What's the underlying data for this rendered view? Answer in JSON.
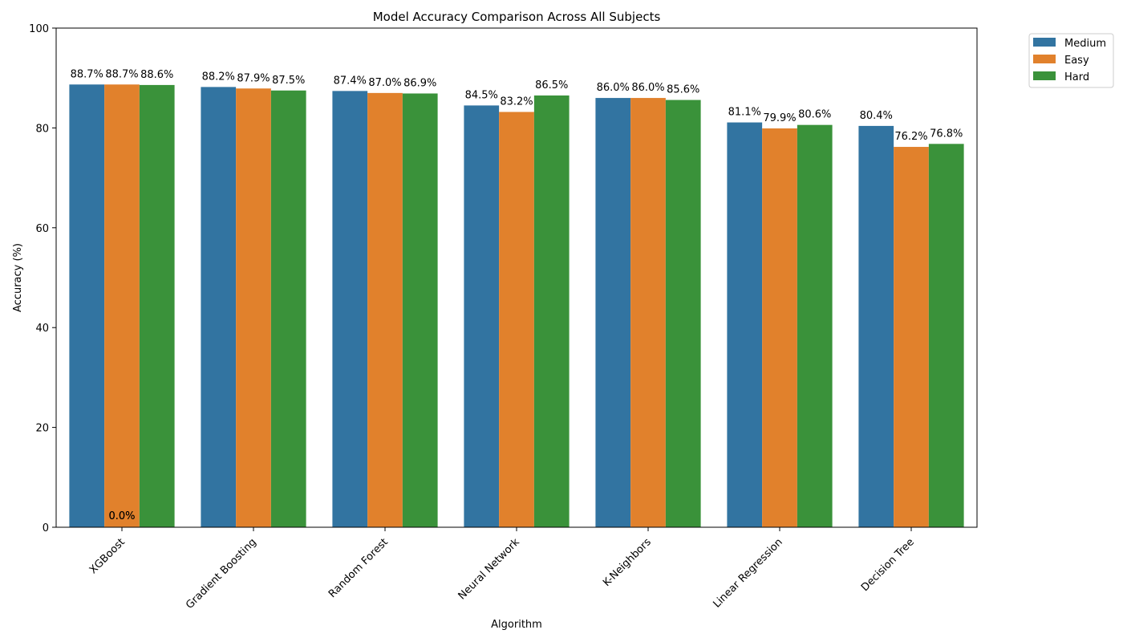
{
  "chart_data": {
    "type": "bar",
    "title": "Model Accuracy Comparison Across All Subjects",
    "xlabel": "Algorithm",
    "ylabel": "Accuracy (%)",
    "ylim": [
      0,
      100
    ],
    "yticks": [
      "0",
      "20",
      "40",
      "60",
      "80",
      "100"
    ],
    "categories": [
      "XGBoost",
      "Gradient Boosting",
      "Random Forest",
      "Neural Network",
      "K-Neighbors",
      "Linear Regression",
      "Decision Tree"
    ],
    "series": [
      {
        "name": "Medium",
        "color": "#3274a1",
        "values": [
          88.7,
          88.2,
          87.4,
          84.5,
          86.0,
          81.1,
          80.4
        ],
        "labels": [
          "88.7%",
          "88.2%",
          "87.4%",
          "84.5%",
          "86.0%",
          "81.1%",
          "80.4%"
        ]
      },
      {
        "name": "Easy",
        "color": "#e1812c",
        "values": [
          88.7,
          87.9,
          87.0,
          83.2,
          86.0,
          79.9,
          76.2
        ],
        "labels": [
          "88.7%",
          "87.9%",
          "87.0%",
          "83.2%",
          "86.0%",
          "79.9%",
          "76.2%"
        ]
      },
      {
        "name": "Hard",
        "color": "#3a923a",
        "values": [
          88.6,
          87.5,
          86.9,
          86.5,
          85.6,
          80.6,
          76.8
        ],
        "labels": [
          "88.6%",
          "87.5%",
          "86.9%",
          "86.5%",
          "85.6%",
          "80.6%",
          "76.8%"
        ]
      }
    ],
    "extra_labels": [
      {
        "text": "0.0%",
        "category": "XGBoost",
        "value": 0
      },
      {
        "text": "0.0%",
        "category": "XGBoost",
        "value": 0
      }
    ],
    "legend_position": "upper right, outside plot",
    "grid": false
  }
}
